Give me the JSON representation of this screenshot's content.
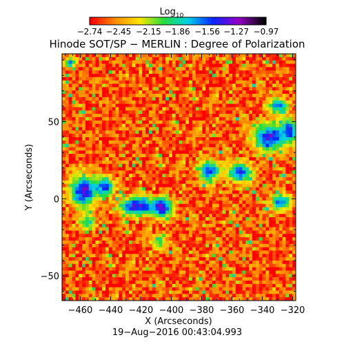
{
  "chart_data": {
    "type": "heatmap",
    "title": "Hinode SOT/SP − MERLIN : Degree of Polarization",
    "xlabel": "X (Arcseconds)",
    "ylabel": "Y (Arcseconds)",
    "footer": "19−Aug−2016 00:43:04.993",
    "xlim": [
      -472,
      -318
    ],
    "ylim": [
      -66,
      94
    ],
    "x_ticks": [
      -460,
      -440,
      -420,
      -400,
      -380,
      -360,
      -340,
      -320
    ],
    "x_tick_labels": [
      "−460",
      "−440",
      "−420",
      "−400",
      "−380",
      "−360",
      "−340",
      "−320"
    ],
    "y_ticks": [
      -50,
      0,
      50
    ],
    "y_tick_labels": [
      "−50",
      "0",
      "50"
    ],
    "colorbar": {
      "label": "Log",
      "label_subscript": "10",
      "min": -2.74,
      "max": -0.97,
      "ticks": [
        -2.74,
        -2.45,
        -2.15,
        -1.86,
        -1.56,
        -1.27,
        -0.97
      ],
      "tick_labels": [
        "−2.74",
        "−2.45",
        "−2.15",
        "−1.86",
        "−1.56",
        "−1.27",
        "−0.97"
      ],
      "colormap": "rainbow"
    },
    "background_level": -2.6,
    "strong_polarization_regions": [
      {
        "x": -458,
        "y": 5,
        "rx": 10,
        "ry": 12,
        "peak": -1.35
      },
      {
        "x": -444,
        "y": 8,
        "rx": 7,
        "ry": 7,
        "peak": -1.45
      },
      {
        "x": -422,
        "y": -5,
        "rx": 14,
        "ry": 7,
        "peak": -1.35
      },
      {
        "x": -406,
        "y": -6,
        "rx": 8,
        "ry": 7,
        "peak": -1.3
      },
      {
        "x": -375,
        "y": 18,
        "rx": 8,
        "ry": 8,
        "peak": -1.55
      },
      {
        "x": -355,
        "y": 17,
        "rx": 10,
        "ry": 7,
        "peak": -1.55
      },
      {
        "x": -335,
        "y": 40,
        "rx": 13,
        "ry": 10,
        "peak": -1.4
      },
      {
        "x": -322,
        "y": 44,
        "rx": 6,
        "ry": 8,
        "peak": -1.4
      },
      {
        "x": -330,
        "y": 60,
        "rx": 8,
        "ry": 6,
        "peak": -1.65
      },
      {
        "x": -328,
        "y": -2,
        "rx": 7,
        "ry": 6,
        "peak": -1.5
      },
      {
        "x": -467,
        "y": 88,
        "rx": 5,
        "ry": 4,
        "peak": -1.75
      },
      {
        "x": -408,
        "y": -28,
        "rx": 6,
        "ry": 5,
        "peak": -1.9
      },
      {
        "x": -455,
        "y": -15,
        "rx": 6,
        "ry": 6,
        "peak": -1.8
      }
    ]
  }
}
